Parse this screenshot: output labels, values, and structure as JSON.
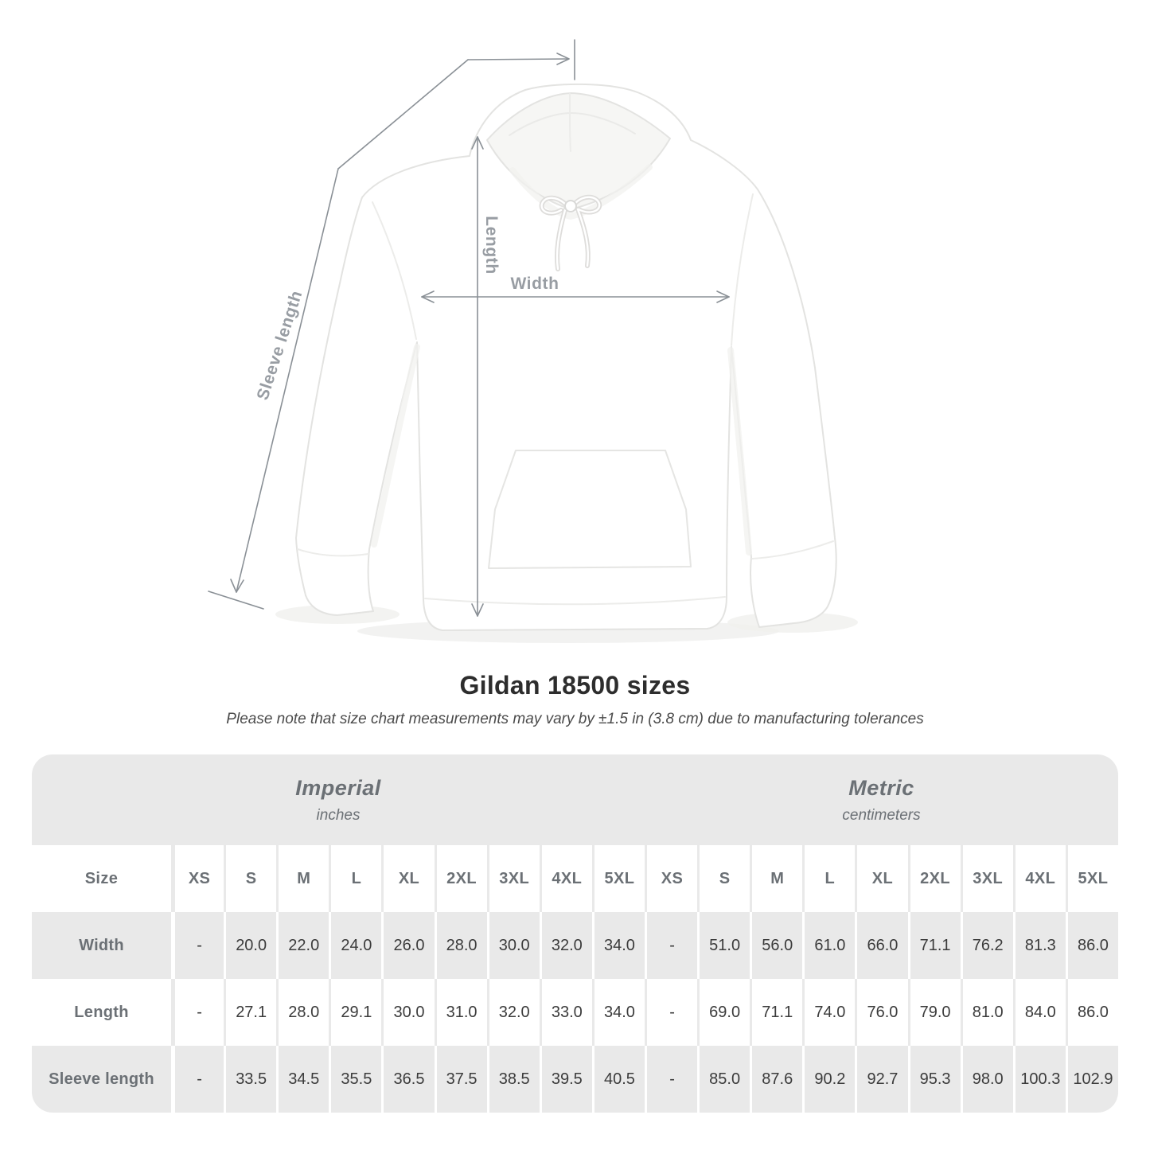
{
  "diagram": {
    "labels": {
      "sleeve": "Sleeve length",
      "length": "Length",
      "width": "Width"
    }
  },
  "heading": {
    "title": "Gildan 18500 sizes",
    "note": "Please note that size chart measurements may vary by ±1.5 in (3.8 cm) due to manufacturing tolerances"
  },
  "size_table": {
    "corner_label": "Size",
    "groups": [
      {
        "label": "Imperial",
        "unit": "inches"
      },
      {
        "label": "Metric",
        "unit": "centimeters"
      }
    ],
    "sizes": [
      "XS",
      "S",
      "M",
      "L",
      "XL",
      "2XL",
      "3XL",
      "4XL",
      "5XL"
    ],
    "rows": [
      {
        "label": "Width",
        "imperial": [
          "-",
          "20.0",
          "22.0",
          "24.0",
          "26.0",
          "28.0",
          "30.0",
          "32.0",
          "34.0"
        ],
        "metric": [
          "-",
          "51.0",
          "56.0",
          "61.0",
          "66.0",
          "71.1",
          "76.2",
          "81.3",
          "86.0"
        ]
      },
      {
        "label": "Length",
        "imperial": [
          "-",
          "27.1",
          "28.0",
          "29.1",
          "30.0",
          "31.0",
          "32.0",
          "33.0",
          "34.0"
        ],
        "metric": [
          "-",
          "69.0",
          "71.1",
          "74.0",
          "76.0",
          "79.0",
          "81.0",
          "84.0",
          "86.0"
        ]
      },
      {
        "label": "Sleeve length",
        "imperial": [
          "-",
          "33.5",
          "34.5",
          "35.5",
          "36.5",
          "37.5",
          "38.5",
          "39.5",
          "40.5"
        ],
        "metric": [
          "-",
          "85.0",
          "87.6",
          "90.2",
          "92.7",
          "95.3",
          "98.0",
          "100.3",
          "102.9"
        ]
      }
    ]
  },
  "colors": {
    "stripe": "#e9e9e9",
    "header_text": "#6b7075",
    "value_text": "#3b3b3b",
    "title_text": "#2d2d2d",
    "note_text": "#4b4b4b",
    "line": "#8a9096",
    "label": "#989da3",
    "garment_outline": "#e3e3e1"
  }
}
